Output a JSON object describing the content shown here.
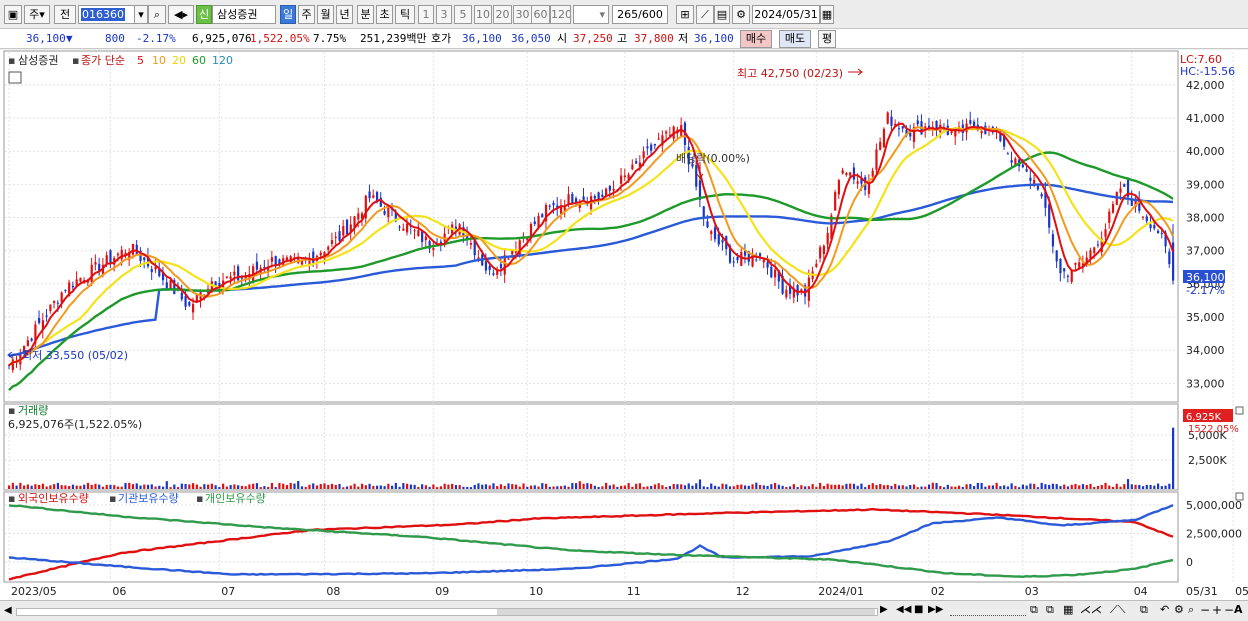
{
  "toolbar": {
    "period_label": "주",
    "prev_label": "전",
    "code_value": "016360",
    "name_badge": "신",
    "stock_name": "삼성증권",
    "tabs": [
      {
        "label": "일",
        "selected": true
      },
      {
        "label": "주",
        "selected": false
      },
      {
        "label": "월",
        "selected": false
      },
      {
        "label": "년",
        "selected": false
      },
      {
        "label": "분",
        "selected": false
      },
      {
        "label": "초",
        "selected": false
      },
      {
        "label": "틱",
        "selected": false
      }
    ],
    "intervals": [
      "1",
      "3",
      "5",
      "10",
      "20",
      "30",
      "60",
      "120"
    ],
    "count_value": "265",
    "count_total": "/600",
    "date_value": "2024/05/31"
  },
  "quote": {
    "price": "36,100",
    "change_arrow": "▼",
    "change": "800",
    "change_pct": "-2.17%",
    "volume": "6,925,076",
    "volume_ratio": "1,522.05%",
    "turnover": "7.75%",
    "amount": "251,239백만",
    "hoga_label": "호가",
    "hoga_ask": "36,100",
    "hoga_bid": "36,050",
    "open_label": "시",
    "open": "37,250",
    "high_label": "고",
    "high": "37,800",
    "low_label": "저",
    "low": "36,100",
    "buy_label": "매수",
    "sell_label": "매도",
    "eval_label": "평"
  },
  "colors": {
    "up": "#e01010",
    "down": "#1a36c8",
    "ma5": "#e01010",
    "ma10": "#f29a1c",
    "ma20": "#f5e31a",
    "ma60": "#1e9a2a",
    "ma120": "#2a5ad8",
    "foreign": "#e01010",
    "inst": "#2a5ad8",
    "indiv": "#2e9a4a"
  },
  "chart_data": [
    {
      "type": "candlestick",
      "title": "삼성증권",
      "legend": [
        "종가 단순",
        "5",
        "10",
        "20",
        "60",
        "120"
      ],
      "ylim": [
        32500,
        42900
      ],
      "y_ticks": [
        "42,000",
        "41,000",
        "40,000",
        "39,000",
        "38,000",
        "37,000",
        "36,000",
        "35,000",
        "34,000",
        "33,000"
      ],
      "y_tick_values": [
        42000,
        41000,
        40000,
        39000,
        38000,
        37000,
        36000,
        35000,
        34000,
        33000
      ],
      "x_labels": [
        "2023/05",
        "06",
        "07",
        "08",
        "09",
        "10",
        "11",
        "12",
        "2024/01",
        "02",
        "03",
        "04",
        "05",
        "05/31"
      ],
      "annotations": {
        "high": "최고 42,750 (02/23)",
        "low": "최저 33,550 (05/02)",
        "ex_rights": "배당락(0.00%)",
        "lc": "LC:7.60",
        "hc": "HC:-15.56",
        "last_price": "36,100",
        "last_pct": "-2.17%"
      },
      "series_close_waypoints": [
        [
          0,
          33550
        ],
        [
          5,
          34300
        ],
        [
          15,
          35900
        ],
        [
          25,
          36600
        ],
        [
          32,
          37100
        ],
        [
          40,
          36300
        ],
        [
          48,
          35300
        ],
        [
          54,
          36100
        ],
        [
          62,
          36200
        ],
        [
          70,
          36700
        ],
        [
          78,
          36600
        ],
        [
          88,
          37400
        ],
        [
          96,
          38600
        ],
        [
          104,
          37900
        ],
        [
          112,
          37200
        ],
        [
          120,
          37800
        ],
        [
          128,
          36300
        ],
        [
          135,
          37200
        ],
        [
          143,
          38200
        ],
        [
          150,
          38600
        ],
        [
          158,
          38600
        ],
        [
          165,
          39300
        ],
        [
          173,
          40300
        ],
        [
          179,
          40650
        ],
        [
          186,
          37600
        ],
        [
          193,
          36700
        ],
        [
          200,
          36900
        ],
        [
          206,
          35900
        ],
        [
          212,
          35700
        ],
        [
          218,
          37600
        ],
        [
          222,
          39600
        ],
        [
          228,
          38900
        ],
        [
          234,
          41000
        ],
        [
          240,
          40600
        ],
        [
          246,
          40800
        ],
        [
          252,
          40500
        ],
        [
          258,
          40800
        ],
        [
          264,
          40400
        ],
        [
          268,
          39600
        ],
        [
          274,
          39000
        ],
        [
          280,
          36300
        ],
        [
          286,
          36600
        ],
        [
          292,
          37700
        ],
        [
          296,
          38900
        ],
        [
          300,
          38400
        ],
        [
          306,
          37600
        ],
        [
          308,
          37000
        ],
        [
          310,
          36100
        ]
      ]
    },
    {
      "type": "bar",
      "title": "거래량",
      "summary": "6,925,076주(1,522.05%)",
      "y_ticks": [
        "5,000K",
        "2,500K"
      ],
      "last_badge_value": "6,925K",
      "last_badge_pct": "1522.05%",
      "last_value": 6925076
    },
    {
      "type": "line",
      "legend": [
        "외국인보유수량",
        "기관보유수량",
        "개인보유수량"
      ],
      "y_ticks": [
        "5,000,000",
        "2,500,000",
        "0"
      ],
      "series": [
        {
          "name": "외국인보유수량",
          "waypoints": [
            [
              0,
              -1500000
            ],
            [
              30,
              800000
            ],
            [
              80,
              2800000
            ],
            [
              120,
              3300000
            ],
            [
              140,
              3800000
            ],
            [
              190,
              4300000
            ],
            [
              230,
              4600000
            ],
            [
              260,
              4200000
            ],
            [
              300,
              3500000
            ],
            [
              310,
              2200000
            ]
          ]
        },
        {
          "name": "기관보유수량",
          "waypoints": [
            [
              0,
              400000
            ],
            [
              30,
              -400000
            ],
            [
              60,
              -1100000
            ],
            [
              110,
              -1000000
            ],
            [
              150,
              -600000
            ],
            [
              178,
              300000
            ],
            [
              184,
              1400000
            ],
            [
              190,
              400000
            ],
            [
              214,
              500000
            ],
            [
              220,
              900000
            ],
            [
              234,
              1800000
            ],
            [
              246,
              3400000
            ],
            [
              264,
              3900000
            ],
            [
              280,
              3200000
            ],
            [
              300,
              3700000
            ],
            [
              310,
              5000000
            ]
          ]
        },
        {
          "name": "개인보유수량",
          "waypoints": [
            [
              0,
              5000000
            ],
            [
              30,
              4000000
            ],
            [
              70,
              3000000
            ],
            [
              110,
              2200000
            ],
            [
              150,
              1000000
            ],
            [
              180,
              600000
            ],
            [
              220,
              200000
            ],
            [
              250,
              -1000000
            ],
            [
              270,
              -1300000
            ],
            [
              285,
              -1100000
            ],
            [
              300,
              -600000
            ],
            [
              310,
              200000
            ]
          ]
        }
      ]
    }
  ]
}
